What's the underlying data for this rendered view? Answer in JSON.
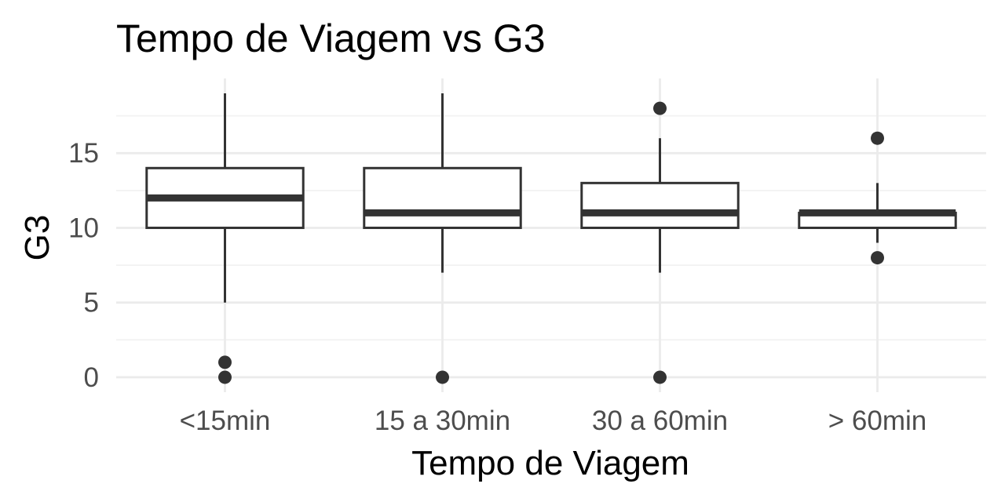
{
  "chart_data": {
    "type": "boxplot",
    "title": "Tempo de Viagem vs  G3",
    "xlabel": "Tempo de Viagem",
    "ylabel": "G3",
    "categories": [
      "<15min",
      "15 a 30min",
      "30 a 60min",
      "> 60min"
    ],
    "ylim": [
      -1,
      20
    ],
    "yticks": [
      0,
      5,
      10,
      15
    ],
    "yminor": [
      2.5,
      7.5,
      12.5,
      17.5
    ],
    "grid": true,
    "boxes": [
      {
        "category": "<15min",
        "whisker_low": 5,
        "q1": 10,
        "median": 12,
        "q3": 14,
        "whisker_high": 19,
        "outliers": [
          0,
          1
        ]
      },
      {
        "category": "15 a 30min",
        "whisker_low": 7,
        "q1": 10,
        "median": 11,
        "q3": 14,
        "whisker_high": 19,
        "outliers": [
          0
        ]
      },
      {
        "category": "30 a 60min",
        "whisker_low": 7,
        "q1": 10,
        "median": 11,
        "q3": 13,
        "whisker_high": 16,
        "outliers": [
          0,
          18
        ]
      },
      {
        "category": "> 60min",
        "whisker_low": 9,
        "q1": 10,
        "median": 11,
        "q3": 11,
        "whisker_high": 13,
        "outliers": [
          8,
          16
        ]
      }
    ],
    "colors": {
      "box_line": "#333333",
      "grid": "#ebebeb",
      "tick_text": "#4d4d4d"
    }
  }
}
